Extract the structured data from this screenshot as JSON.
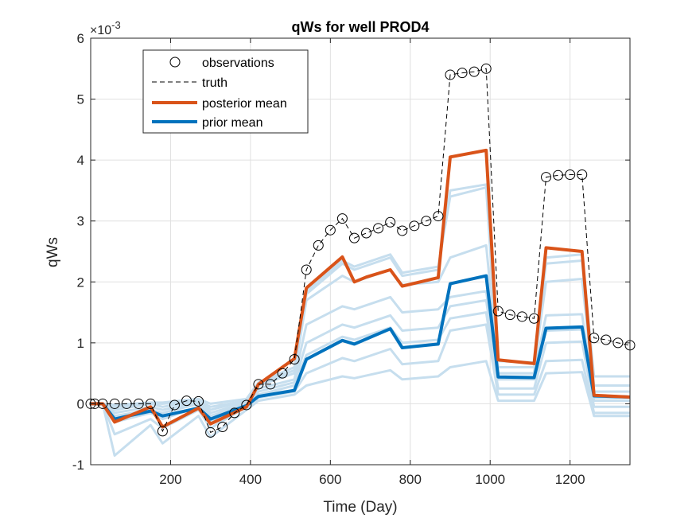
{
  "chart_data": {
    "type": "line",
    "title": "qWs for well PROD4",
    "xlabel": "Time (Day)",
    "ylabel": "qWs",
    "exponent_base": "×10",
    "exponent_power": "-3",
    "xlim": [
      0,
      1350
    ],
    "ylim": [
      -1,
      6
    ],
    "xticks": [
      200,
      400,
      600,
      800,
      1000,
      1200
    ],
    "yticks": [
      -1,
      0,
      1,
      2,
      3,
      4,
      5,
      6
    ],
    "grid": true,
    "legend_position": "top-left",
    "colors": {
      "observations": "#000000",
      "truth": "#000000",
      "posterior_mean": "#D95319",
      "prior_mean": "#0072BD",
      "ensemble": "#C6DEEE"
    },
    "legend": [
      {
        "key": "observations",
        "label": "observations"
      },
      {
        "key": "truth",
        "label": "truth"
      },
      {
        "key": "posterior_mean",
        "label": "posterior mean"
      },
      {
        "key": "prior_mean",
        "label": "prior mean"
      }
    ],
    "observations": {
      "name": "observations",
      "x": [
        0,
        10,
        30,
        60,
        90,
        120,
        150,
        180,
        210,
        240,
        270,
        300,
        330,
        360,
        390,
        420,
        450,
        480,
        510,
        540,
        570,
        600,
        630,
        660,
        690,
        720,
        750,
        780,
        810,
        840,
        870,
        900,
        930,
        960,
        990,
        1020,
        1050,
        1080,
        1110,
        1140,
        1170,
        1200,
        1230,
        1260,
        1290,
        1320,
        1350
      ],
      "y": [
        0,
        0,
        0,
        0,
        0,
        0,
        0,
        -0.45,
        -0.02,
        0.05,
        0.04,
        -0.47,
        -0.38,
        -0.15,
        -0.02,
        0.32,
        0.32,
        0.5,
        0.73,
        2.2,
        2.6,
        2.85,
        3.04,
        2.72,
        2.8,
        2.88,
        2.98,
        2.84,
        2.92,
        3.0,
        3.08,
        5.4,
        5.43,
        5.45,
        5.5,
        1.52,
        1.46,
        1.43,
        1.4,
        3.72,
        3.75,
        3.76,
        3.76,
        1.08,
        1.05,
        1.0,
        0.96
      ]
    },
    "truth": {
      "name": "truth",
      "x": [
        0,
        10,
        30,
        60,
        90,
        120,
        150,
        180,
        210,
        240,
        270,
        300,
        330,
        360,
        390,
        420,
        450,
        480,
        510,
        540,
        570,
        600,
        630,
        660,
        690,
        720,
        750,
        780,
        810,
        840,
        870,
        900,
        930,
        960,
        990,
        1020,
        1050,
        1080,
        1110,
        1140,
        1170,
        1200,
        1230,
        1260,
        1290,
        1320,
        1350
      ],
      "y": [
        0,
        0,
        0,
        0,
        0,
        0,
        0,
        -0.45,
        -0.02,
        0.05,
        0.04,
        -0.47,
        -0.38,
        -0.15,
        -0.02,
        0.32,
        0.32,
        0.5,
        0.73,
        2.2,
        2.6,
        2.85,
        3.04,
        2.72,
        2.8,
        2.88,
        2.98,
        2.84,
        2.92,
        3.0,
        3.08,
        5.4,
        5.43,
        5.45,
        5.5,
        1.52,
        1.46,
        1.43,
        1.4,
        3.72,
        3.75,
        3.76,
        3.76,
        1.08,
        1.05,
        1.0,
        0.96
      ]
    },
    "posterior_mean": {
      "name": "posterior mean",
      "x": [
        0,
        30,
        60,
        150,
        180,
        270,
        300,
        390,
        420,
        510,
        540,
        630,
        660,
        690,
        750,
        780,
        870,
        900,
        990,
        1020,
        1110,
        1140,
        1230,
        1260,
        1350
      ],
      "y": [
        0,
        0,
        -0.3,
        -0.05,
        -0.38,
        -0.07,
        -0.33,
        -0.05,
        0.32,
        0.74,
        1.9,
        2.41,
        2.0,
        2.08,
        2.2,
        1.93,
        2.07,
        4.05,
        4.16,
        0.72,
        0.66,
        2.56,
        2.5,
        0.14,
        0.11
      ]
    },
    "prior_mean": {
      "name": "prior mean",
      "x": [
        0,
        30,
        60,
        150,
        180,
        270,
        300,
        390,
        420,
        510,
        540,
        630,
        660,
        750,
        780,
        870,
        900,
        990,
        1020,
        1110,
        1140,
        1230,
        1260,
        1350
      ],
      "y": [
        0,
        0,
        -0.25,
        -0.12,
        -0.2,
        -0.07,
        -0.25,
        -0.03,
        0.12,
        0.22,
        0.73,
        1.04,
        0.98,
        1.23,
        0.92,
        0.98,
        1.97,
        2.1,
        0.44,
        0.43,
        1.24,
        1.26,
        0.13,
        0.11
      ]
    },
    "ensemble": {
      "x": [
        0,
        30,
        60,
        150,
        180,
        270,
        300,
        390,
        420,
        510,
        540,
        630,
        660,
        750,
        780,
        870,
        900,
        990,
        1020,
        1110,
        1140,
        1230,
        1260,
        1350
      ],
      "members": [
        [
          0,
          0,
          -0.85,
          -0.35,
          -0.65,
          -0.2,
          -0.55,
          -0.1,
          0.05,
          0.15,
          0.3,
          0.45,
          0.42,
          0.55,
          0.4,
          0.45,
          0.6,
          0.7,
          0.05,
          0.05,
          0.5,
          0.52,
          -0.2,
          -0.2
        ],
        [
          0,
          0,
          -0.5,
          -0.25,
          -0.4,
          -0.1,
          -0.4,
          -0.05,
          0.1,
          0.2,
          0.5,
          0.75,
          0.7,
          0.9,
          0.65,
          0.7,
          1.2,
          1.3,
          0.15,
          0.15,
          0.7,
          0.72,
          -0.15,
          -0.15
        ],
        [
          0,
          0,
          -0.3,
          -0.15,
          -0.25,
          -0.05,
          -0.3,
          0.0,
          0.15,
          0.3,
          0.8,
          1.1,
          1.05,
          1.25,
          1.0,
          1.05,
          1.4,
          1.5,
          0.25,
          0.25,
          1.0,
          1.02,
          -0.05,
          -0.05
        ],
        [
          0,
          0,
          -0.2,
          -0.1,
          -0.15,
          0.0,
          -0.2,
          0.0,
          0.2,
          0.35,
          1.0,
          1.3,
          1.25,
          1.45,
          1.2,
          1.25,
          1.6,
          1.7,
          0.4,
          0.4,
          1.2,
          1.22,
          0.05,
          0.05
        ],
        [
          0,
          0,
          -0.15,
          -0.05,
          -0.1,
          0.02,
          -0.15,
          0.02,
          0.25,
          0.4,
          1.3,
          1.6,
          1.55,
          1.75,
          1.5,
          1.55,
          1.75,
          1.85,
          0.5,
          0.5,
          1.45,
          1.47,
          0.1,
          0.1
        ],
        [
          0,
          0,
          -0.1,
          0.0,
          -0.05,
          0.05,
          -0.1,
          0.05,
          0.3,
          0.5,
          1.7,
          2.1,
          2.0,
          2.2,
          1.95,
          2.0,
          2.4,
          2.6,
          0.6,
          0.6,
          2.0,
          2.05,
          0.2,
          0.2
        ],
        [
          0,
          0,
          -0.05,
          0.0,
          0.0,
          0.05,
          -0.05,
          0.05,
          0.32,
          0.55,
          1.8,
          2.3,
          2.2,
          2.4,
          2.1,
          2.2,
          3.5,
          3.6,
          0.7,
          0.68,
          2.3,
          2.35,
          0.3,
          0.3
        ],
        [
          0,
          0,
          -0.02,
          0.02,
          0.02,
          0.08,
          0.0,
          0.08,
          0.35,
          0.6,
          1.85,
          2.35,
          2.25,
          2.45,
          2.15,
          2.25,
          3.4,
          3.55,
          0.5,
          0.5,
          2.4,
          2.45,
          0.45,
          0.45
        ]
      ]
    }
  }
}
